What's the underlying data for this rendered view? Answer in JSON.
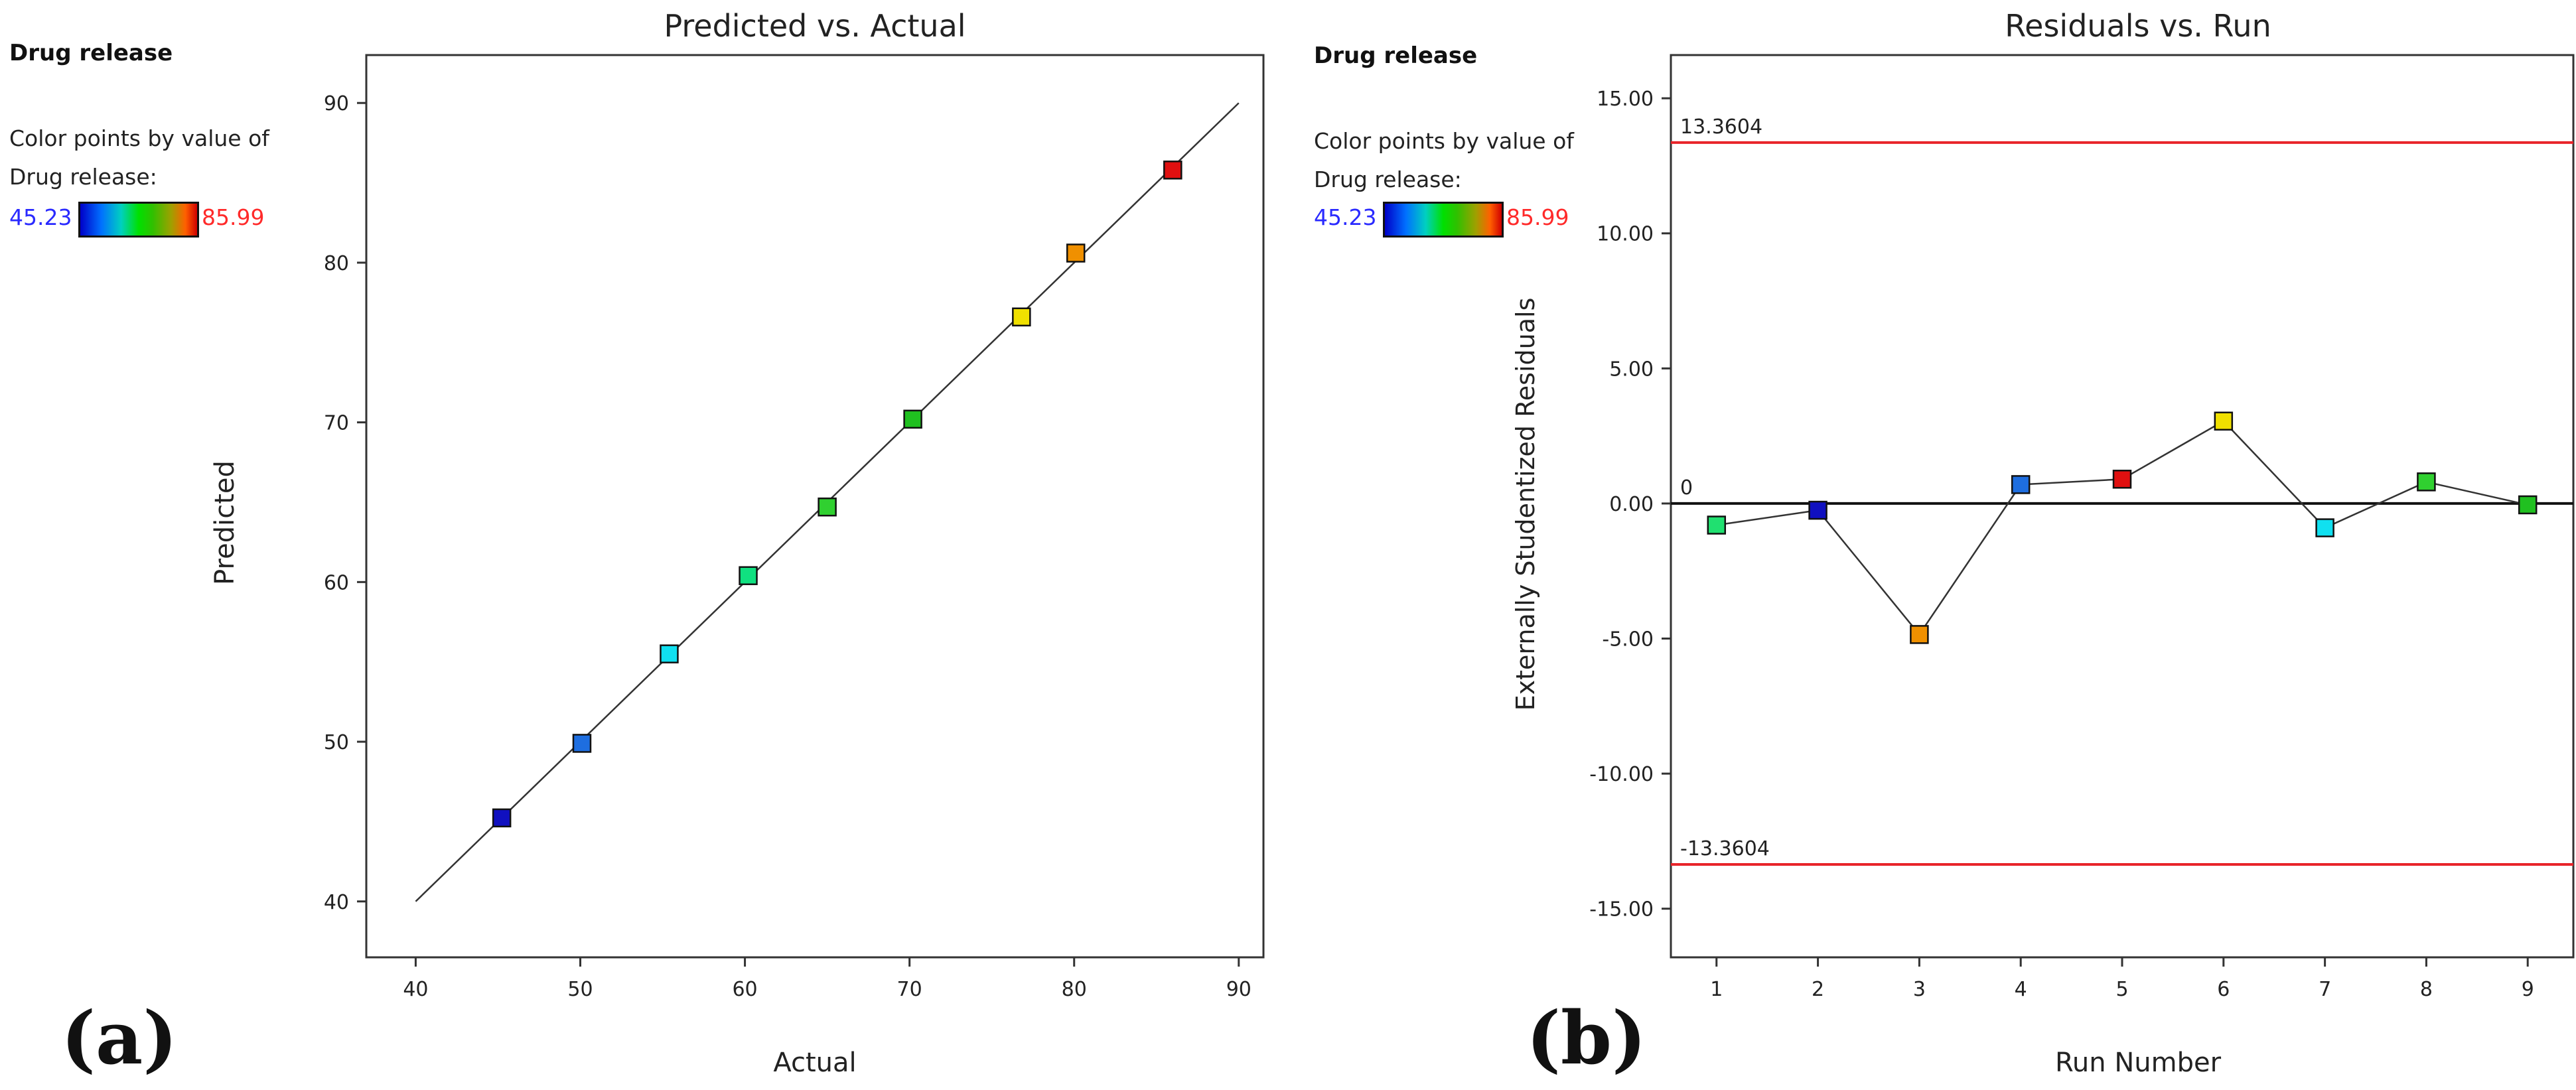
{
  "panels": [
    {
      "label": "(a)",
      "legend": {
        "title": "Drug release",
        "caption_line1": "Color points by value of",
        "caption_line2": "Drug release:",
        "min": "45.23",
        "max": "85.99"
      }
    },
    {
      "label": "(b)",
      "legend": {
        "title": "Drug release",
        "caption_line1": "Color points by value of",
        "caption_line2": "Drug release:",
        "min": "45.23",
        "max": "85.99"
      }
    }
  ],
  "colors": {
    "axis": "#333333",
    "line": "#333333",
    "limit_line": "#e8242a",
    "zero_line": "#111111"
  },
  "chart_data": [
    {
      "type": "scatter",
      "title": "Predicted vs. Actual",
      "xlabel": "Actual",
      "ylabel": "Predicted",
      "xlim": [
        37,
        91.5
      ],
      "ylim": [
        36.5,
        93
      ],
      "xticks": [
        40,
        50,
        60,
        70,
        80,
        90
      ],
      "yticks": [
        40,
        50,
        60,
        70,
        80,
        90
      ],
      "reference_line": [
        [
          40,
          40
        ],
        [
          90,
          90
        ]
      ],
      "points": [
        {
          "x": 45.23,
          "y": 45.23,
          "color": "#1010c0"
        },
        {
          "x": 50.1,
          "y": 49.9,
          "color": "#1e6ee0"
        },
        {
          "x": 55.4,
          "y": 55.5,
          "color": "#10e0f0"
        },
        {
          "x": 60.2,
          "y": 60.4,
          "color": "#10e080"
        },
        {
          "x": 65.0,
          "y": 64.7,
          "color": "#30d030"
        },
        {
          "x": 70.2,
          "y": 70.2,
          "color": "#20c020"
        },
        {
          "x": 76.8,
          "y": 76.6,
          "color": "#f0e000"
        },
        {
          "x": 80.1,
          "y": 80.6,
          "color": "#f09000"
        },
        {
          "x": 85.99,
          "y": 85.8,
          "color": "#e01010"
        }
      ]
    },
    {
      "type": "line",
      "title": "Residuals vs. Run",
      "xlabel": "Run Number",
      "ylabel": "Externally Studentized Residuals",
      "xlim": [
        0.55,
        9.45
      ],
      "ylim": [
        -16.8,
        16.6
      ],
      "xticks": [
        1,
        2,
        3,
        4,
        5,
        6,
        7,
        8,
        9
      ],
      "yticks": [
        15,
        10,
        5,
        0,
        -5,
        -10,
        -15
      ],
      "ytick_labels": [
        "15.00",
        "10.00",
        "5.00",
        "0.00",
        "-5.00",
        "-10.00",
        "-15.00"
      ],
      "upper_limit": {
        "value": 13.3604,
        "label": "13.3604"
      },
      "lower_limit": {
        "value": -13.3604,
        "label": "-13.3604"
      },
      "zero_label": "0",
      "points": [
        {
          "x": 1,
          "y": -0.8,
          "color": "#20e070"
        },
        {
          "x": 2,
          "y": -0.25,
          "color": "#1010c0"
        },
        {
          "x": 3,
          "y": -4.85,
          "color": "#f09000"
        },
        {
          "x": 4,
          "y": 0.7,
          "color": "#1e6ee0"
        },
        {
          "x": 5,
          "y": 0.9,
          "color": "#e01010"
        },
        {
          "x": 6,
          "y": 3.05,
          "color": "#f0e000"
        },
        {
          "x": 7,
          "y": -0.9,
          "color": "#10e0f0"
        },
        {
          "x": 8,
          "y": 0.8,
          "color": "#30d030"
        },
        {
          "x": 9,
          "y": -0.05,
          "color": "#20c020"
        }
      ]
    }
  ]
}
